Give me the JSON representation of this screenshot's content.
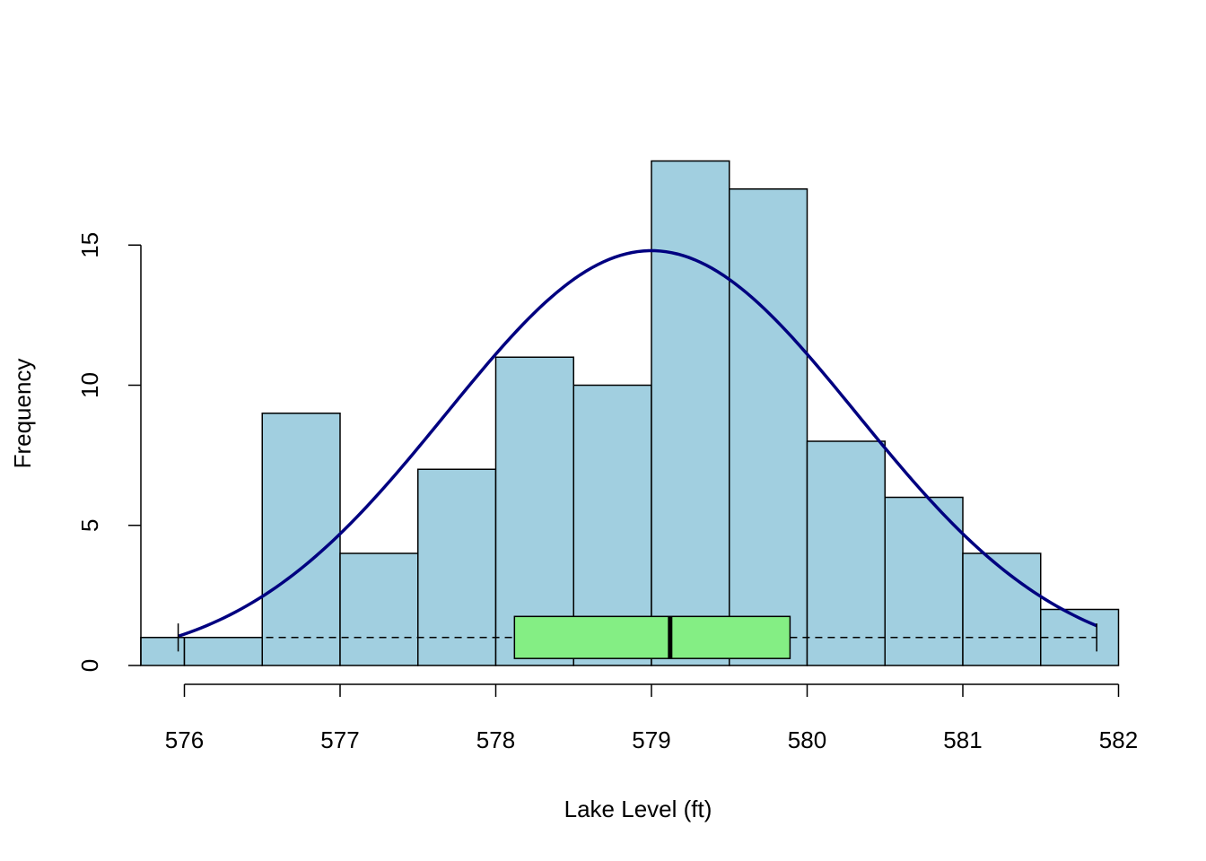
{
  "chart_data": {
    "type": "bar",
    "subtype": "histogram-with-normal-curve-and-boxplot",
    "xlabel": "Lake Level (ft)",
    "ylabel": "Frequency",
    "xlim": [
      575.72,
      582
    ],
    "ylim": [
      0,
      18
    ],
    "x_ticks": [
      "576",
      "577",
      "578",
      "579",
      "580",
      "581",
      "582"
    ],
    "y_ticks": [
      "0",
      "5",
      "10",
      "15"
    ],
    "bins": [
      {
        "start": 575.72,
        "end": 576.0,
        "count": 1
      },
      {
        "start": 576.0,
        "end": 576.5,
        "count": 1
      },
      {
        "start": 576.5,
        "end": 577.0,
        "count": 9
      },
      {
        "start": 577.0,
        "end": 577.5,
        "count": 4
      },
      {
        "start": 577.5,
        "end": 578.0,
        "count": 7
      },
      {
        "start": 578.0,
        "end": 578.5,
        "count": 11
      },
      {
        "start": 578.5,
        "end": 579.0,
        "count": 10
      },
      {
        "start": 579.0,
        "end": 579.5,
        "count": 18
      },
      {
        "start": 579.5,
        "end": 580.0,
        "count": 17
      },
      {
        "start": 580.0,
        "end": 580.5,
        "count": 8
      },
      {
        "start": 580.5,
        "end": 581.0,
        "count": 6
      },
      {
        "start": 581.0,
        "end": 581.5,
        "count": 4
      },
      {
        "start": 581.5,
        "end": 582.0,
        "count": 2
      }
    ],
    "normal_curve": {
      "mean": 579.0,
      "sd": 1.32,
      "peak": 14.8,
      "x_from": 575.96,
      "x_to": 581.86
    },
    "boxplot": {
      "min": 575.96,
      "q1": 578.12,
      "median": 579.12,
      "q3": 579.89,
      "max": 581.86
    },
    "colors": {
      "bar_fill": "#a1cfe0",
      "bar_stroke": "#000000",
      "curve": "#000080",
      "box_fill": "#84ee84"
    }
  }
}
